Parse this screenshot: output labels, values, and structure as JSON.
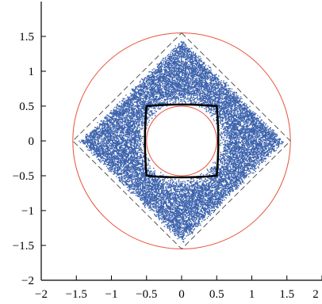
{
  "chart_data": {
    "type": "scatter",
    "title": "",
    "xlabel": "",
    "ylabel": "",
    "xlim": [
      -2,
      2
    ],
    "ylim": [
      -2,
      2
    ],
    "xticks": [
      -2,
      -1.5,
      -1,
      -0.5,
      0,
      0.5,
      1,
      1.5,
      2
    ],
    "yticks": [
      -2,
      -1.5,
      -1,
      -0.5,
      0,
      0.5,
      1,
      1.5
    ],
    "xtick_labels": [
      "−2",
      "−1.5",
      "−1",
      "−0.5",
      "0",
      "0.5",
      "1",
      "1.5",
      "2"
    ],
    "ytick_labels": [
      "−2",
      "−1.5",
      "−1",
      "−0.5",
      "0",
      "0.5",
      "1",
      "1.5"
    ],
    "grid": false,
    "point_cloud": {
      "color": "#3d63ad",
      "shape": "diamond-annulus",
      "outer_diamond_radius_l1": 1.42,
      "inner_hole_radius": 0.58
    },
    "circles": [
      {
        "center": [
          0,
          0
        ],
        "radius": 1.55,
        "color": "#e8503a",
        "style": "solid"
      },
      {
        "center": [
          0,
          0
        ],
        "radius": 0.5,
        "color": "#e8503a",
        "style": "solid"
      }
    ],
    "dashed_diamond": {
      "center": [
        0,
        0
      ],
      "vertex_radius": 1.55,
      "color": "#555555",
      "style": "dashed"
    },
    "rounded_square": {
      "center": [
        0,
        0
      ],
      "half_width": 0.5,
      "color": "#000000",
      "style": "solid-thick"
    }
  }
}
